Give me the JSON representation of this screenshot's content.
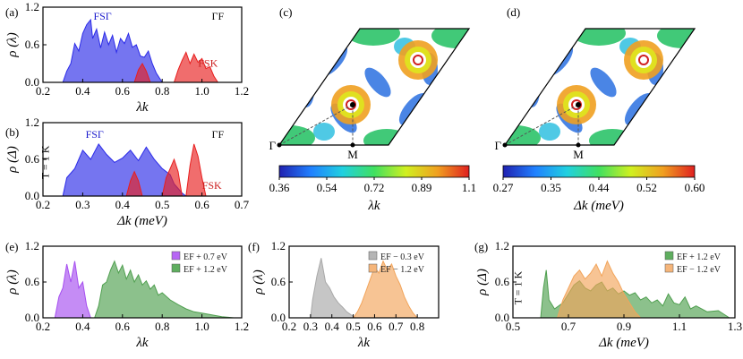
{
  "panels": [
    {
      "id": "a",
      "label": "(a)",
      "xlabel": "λk",
      "ylabel": "ρ (λ)",
      "xlim": [
        0.2,
        1.2
      ],
      "ylim": [
        0,
        1.2
      ],
      "xticks": [
        "0.2",
        "0.4",
        "0.6",
        "0.8",
        "1.0",
        "1.2"
      ],
      "yticks": [
        "0.0",
        "0.6",
        "1.2"
      ],
      "annotations": [
        {
          "text": "FSΓ",
          "color": "#1a1acc",
          "at": [
            0.5,
            1.0
          ]
        },
        {
          "text": "ΓF",
          "color": "#111111",
          "at": [
            1.08,
            1.0
          ]
        },
        {
          "text": "FSK",
          "color": "#cc1f1f",
          "at": [
            1.03,
            0.25
          ]
        }
      ],
      "series": [
        {
          "color": "#2b2be8",
          "points": [
            [
              0.3,
              0.0
            ],
            [
              0.32,
              0.18
            ],
            [
              0.34,
              0.3
            ],
            [
              0.36,
              0.62
            ],
            [
              0.38,
              0.5
            ],
            [
              0.4,
              0.78
            ],
            [
              0.42,
              0.92
            ],
            [
              0.44,
              1.0
            ],
            [
              0.45,
              0.7
            ],
            [
              0.47,
              0.85
            ],
            [
              0.49,
              0.55
            ],
            [
              0.51,
              0.8
            ],
            [
              0.53,
              0.6
            ],
            [
              0.55,
              0.75
            ],
            [
              0.57,
              0.48
            ],
            [
              0.59,
              0.7
            ],
            [
              0.61,
              0.62
            ],
            [
              0.63,
              0.78
            ],
            [
              0.65,
              0.56
            ],
            [
              0.67,
              0.6
            ],
            [
              0.69,
              0.42
            ],
            [
              0.71,
              0.4
            ],
            [
              0.73,
              0.5
            ],
            [
              0.75,
              0.3
            ],
            [
              0.77,
              0.15
            ],
            [
              0.79,
              0.05
            ],
            [
              0.8,
              0.0
            ]
          ]
        },
        {
          "color": "#e81e1e",
          "points": [
            [
              0.66,
              0.0
            ],
            [
              0.68,
              0.2
            ],
            [
              0.7,
              0.3
            ],
            [
              0.72,
              0.18
            ],
            [
              0.74,
              0.0
            ]
          ]
        },
        {
          "color": "#e81e1e",
          "points": [
            [
              0.86,
              0.0
            ],
            [
              0.88,
              0.2
            ],
            [
              0.9,
              0.35
            ],
            [
              0.92,
              0.48
            ],
            [
              0.94,
              0.3
            ],
            [
              0.96,
              0.45
            ],
            [
              0.98,
              0.32
            ],
            [
              1.0,
              0.38
            ],
            [
              1.02,
              0.22
            ],
            [
              1.04,
              0.25
            ],
            [
              1.06,
              0.1
            ],
            [
              1.08,
              0.0
            ]
          ]
        }
      ]
    },
    {
      "id": "b",
      "label": "(b)",
      "xlabel": "Δk (meV)",
      "ylabel": "ρ (Δ)",
      "xlim": [
        0.2,
        0.7
      ],
      "ylim": [
        0,
        1.2
      ],
      "xticks": [
        "0.2",
        "0.3",
        "0.4",
        "0.5",
        "0.6",
        "0.7"
      ],
      "yticks": [
        "0.0",
        "0.6",
        "1.2"
      ],
      "annotations": [
        {
          "text": "FSΓ",
          "color": "#1a1acc",
          "at": [
            0.33,
            0.95
          ]
        },
        {
          "text": "ΓF",
          "color": "#111111",
          "at": [
            0.64,
            0.95
          ]
        },
        {
          "text": "FSK",
          "color": "#cc1f1f",
          "at": [
            0.625,
            0.12
          ]
        },
        {
          "text": "T = 1 K",
          "color": "#111111",
          "at": [
            0.215,
            0.55
          ],
          "rotate": true
        }
      ],
      "series": [
        {
          "color": "#2b2be8",
          "points": [
            [
              0.25,
              0.0
            ],
            [
              0.26,
              0.3
            ],
            [
              0.28,
              0.45
            ],
            [
              0.3,
              0.75
            ],
            [
              0.32,
              0.6
            ],
            [
              0.34,
              0.85
            ],
            [
              0.36,
              0.68
            ],
            [
              0.38,
              0.55
            ],
            [
              0.4,
              0.62
            ],
            [
              0.42,
              0.75
            ],
            [
              0.44,
              0.58
            ],
            [
              0.46,
              0.8
            ],
            [
              0.48,
              0.6
            ],
            [
              0.5,
              0.45
            ],
            [
              0.52,
              0.35
            ],
            [
              0.53,
              0.2
            ],
            [
              0.55,
              0.05
            ],
            [
              0.56,
              0.0
            ]
          ]
        },
        {
          "color": "#e81e1e",
          "points": [
            [
              0.41,
              0.0
            ],
            [
              0.42,
              0.25
            ],
            [
              0.43,
              0.4
            ],
            [
              0.44,
              0.25
            ],
            [
              0.45,
              0.0
            ]
          ]
        },
        {
          "color": "#e81e1e",
          "points": [
            [
              0.5,
              0.0
            ],
            [
              0.51,
              0.3
            ],
            [
              0.52,
              0.45
            ],
            [
              0.53,
              0.6
            ],
            [
              0.54,
              0.4
            ],
            [
              0.55,
              0.0
            ]
          ]
        },
        {
          "color": "#e81e1e",
          "points": [
            [
              0.56,
              0.0
            ],
            [
              0.57,
              0.5
            ],
            [
              0.58,
              0.85
            ],
            [
              0.59,
              0.65
            ],
            [
              0.6,
              0.3
            ],
            [
              0.61,
              0.0
            ]
          ]
        }
      ]
    },
    {
      "id": "e",
      "label": "(e)",
      "xlabel": "λk",
      "ylabel": "ρ (λ)",
      "xlim": [
        0.2,
        1.2
      ],
      "ylim": [
        0,
        1.2
      ],
      "xticks": [
        "0.2",
        "0.4",
        "0.6",
        "0.8",
        "1.0",
        "1.2"
      ],
      "yticks": [
        "0.0",
        "0.6",
        "1.2"
      ],
      "legend": [
        {
          "text": "EF + 0.7 eV",
          "color": "#b766f5"
        },
        {
          "text": "EF + 1.2 eV",
          "color": "#5fae5f"
        }
      ],
      "series": [
        {
          "color": "#a64ff0",
          "points": [
            [
              0.26,
              0.0
            ],
            [
              0.28,
              0.35
            ],
            [
              0.3,
              0.5
            ],
            [
              0.32,
              0.9
            ],
            [
              0.34,
              0.6
            ],
            [
              0.36,
              0.95
            ],
            [
              0.38,
              0.5
            ],
            [
              0.4,
              0.6
            ],
            [
              0.42,
              0.2
            ],
            [
              0.44,
              0.0
            ]
          ]
        },
        {
          "color": "#4f9f4f",
          "points": [
            [
              0.46,
              0.0
            ],
            [
              0.48,
              0.2
            ],
            [
              0.5,
              0.55
            ],
            [
              0.52,
              0.6
            ],
            [
              0.54,
              0.8
            ],
            [
              0.56,
              0.95
            ],
            [
              0.58,
              0.75
            ],
            [
              0.6,
              0.88
            ],
            [
              0.62,
              0.65
            ],
            [
              0.64,
              0.8
            ],
            [
              0.66,
              0.6
            ],
            [
              0.68,
              0.72
            ],
            [
              0.7,
              0.55
            ],
            [
              0.72,
              0.62
            ],
            [
              0.74,
              0.48
            ],
            [
              0.76,
              0.55
            ],
            [
              0.78,
              0.38
            ],
            [
              0.8,
              0.42
            ],
            [
              0.84,
              0.3
            ],
            [
              0.88,
              0.22
            ],
            [
              0.92,
              0.15
            ],
            [
              0.96,
              0.1
            ],
            [
              1.0,
              0.08
            ],
            [
              1.05,
              0.05
            ],
            [
              1.1,
              0.02
            ],
            [
              1.16,
              0.0
            ]
          ]
        }
      ]
    },
    {
      "id": "f",
      "label": "(f)",
      "xlabel": "λk",
      "ylabel": "ρ (λ)",
      "xlim": [
        0.2,
        0.9
      ],
      "ylim": [
        0,
        1.2
      ],
      "xticks": [
        "0.2",
        "0.3",
        "0.4",
        "0.5",
        "0.6",
        "0.7",
        "0.8"
      ],
      "yticks": [
        "0.0",
        "0.6",
        "1.2"
      ],
      "legend": [
        {
          "text": "EF − 0.3 eV",
          "color": "#b5b5b5"
        },
        {
          "text": "EF − 1.2 eV",
          "color": "#f5b57a"
        }
      ],
      "series": [
        {
          "color": "#a8a8a8",
          "points": [
            [
              0.3,
              0.0
            ],
            [
              0.31,
              0.3
            ],
            [
              0.33,
              0.7
            ],
            [
              0.35,
              1.0
            ],
            [
              0.37,
              0.6
            ],
            [
              0.39,
              0.5
            ],
            [
              0.41,
              0.35
            ],
            [
              0.43,
              0.25
            ],
            [
              0.45,
              0.18
            ],
            [
              0.47,
              0.1
            ],
            [
              0.49,
              0.05
            ],
            [
              0.51,
              0.0
            ]
          ]
        },
        {
          "color": "#f2a45a",
          "points": [
            [
              0.5,
              0.0
            ],
            [
              0.52,
              0.1
            ],
            [
              0.54,
              0.25
            ],
            [
              0.56,
              0.45
            ],
            [
              0.58,
              0.65
            ],
            [
              0.6,
              0.85
            ],
            [
              0.62,
              0.75
            ],
            [
              0.64,
              0.95
            ],
            [
              0.66,
              0.8
            ],
            [
              0.68,
              0.9
            ],
            [
              0.7,
              0.7
            ],
            [
              0.72,
              0.55
            ],
            [
              0.74,
              0.35
            ],
            [
              0.76,
              0.2
            ],
            [
              0.78,
              0.08
            ],
            [
              0.8,
              0.0
            ]
          ]
        }
      ]
    },
    {
      "id": "g",
      "label": "(g)",
      "xlabel": "Δk (meV)",
      "ylabel": "ρ (Δ)",
      "xlim": [
        0.5,
        1.3
      ],
      "ylim": [
        0,
        1.2
      ],
      "xticks": [
        "0.5",
        "0.7",
        "0.9",
        "1.1",
        "1.3"
      ],
      "yticks": [
        "0.0",
        "0.6",
        "1.2"
      ],
      "legend": [
        {
          "text": "EF + 1.2 eV",
          "color": "#5fae5f"
        },
        {
          "text": "EF − 1.2 eV",
          "color": "#f5b57a"
        }
      ],
      "annotations": [
        {
          "text": "T = 1 K",
          "color": "#111111",
          "at": [
            0.53,
            0.5
          ],
          "rotate": true
        }
      ],
      "series": [
        {
          "color": "#4f9f4f",
          "points": [
            [
              0.6,
              0.0
            ],
            [
              0.61,
              0.5
            ],
            [
              0.62,
              0.8
            ],
            [
              0.63,
              0.3
            ],
            [
              0.65,
              0.15
            ],
            [
              0.68,
              0.25
            ],
            [
              0.7,
              0.4
            ],
            [
              0.72,
              0.55
            ],
            [
              0.74,
              0.62
            ],
            [
              0.76,
              0.5
            ],
            [
              0.78,
              0.45
            ],
            [
              0.8,
              0.55
            ],
            [
              0.82,
              0.6
            ],
            [
              0.84,
              0.45
            ],
            [
              0.86,
              0.5
            ],
            [
              0.88,
              0.4
            ],
            [
              0.9,
              0.45
            ],
            [
              0.92,
              0.38
            ],
            [
              0.94,
              0.42
            ],
            [
              0.96,
              0.3
            ],
            [
              0.98,
              0.35
            ],
            [
              1.0,
              0.25
            ],
            [
              1.02,
              0.3
            ],
            [
              1.04,
              0.2
            ],
            [
              1.06,
              0.4
            ],
            [
              1.08,
              0.25
            ],
            [
              1.1,
              0.22
            ],
            [
              1.12,
              0.35
            ],
            [
              1.14,
              0.15
            ],
            [
              1.16,
              0.2
            ],
            [
              1.2,
              0.1
            ],
            [
              1.24,
              0.12
            ],
            [
              1.28,
              0.0
            ]
          ]
        },
        {
          "color": "#f2a45a",
          "points": [
            [
              0.66,
              0.0
            ],
            [
              0.68,
              0.3
            ],
            [
              0.7,
              0.5
            ],
            [
              0.72,
              0.7
            ],
            [
              0.74,
              0.8
            ],
            [
              0.76,
              0.65
            ],
            [
              0.78,
              0.75
            ],
            [
              0.8,
              0.9
            ],
            [
              0.82,
              0.7
            ],
            [
              0.84,
              0.95
            ],
            [
              0.86,
              0.75
            ],
            [
              0.88,
              0.6
            ],
            [
              0.9,
              0.4
            ],
            [
              0.92,
              0.25
            ],
            [
              0.94,
              0.1
            ],
            [
              0.96,
              0.0
            ]
          ]
        }
      ]
    }
  ],
  "maps": [
    {
      "id": "c",
      "label": "(c)",
      "cbar_label": "λk",
      "cbar_ticks": [
        "0.36",
        "0.54",
        "0.72",
        "0.89",
        "1.1"
      ],
      "points": [
        "Γ",
        "M"
      ]
    },
    {
      "id": "d",
      "label": "(d)",
      "cbar_label": "Δk (meV)",
      "cbar_ticks": [
        "0.27",
        "0.35",
        "0.44",
        "0.52",
        "0.60"
      ],
      "points": [
        "Γ",
        "M"
      ]
    }
  ],
  "colors": {
    "cmap": [
      "#2020b0",
      "#2080ff",
      "#20d0e0",
      "#40e060",
      "#d0f020",
      "#f0a020",
      "#e02020"
    ]
  }
}
